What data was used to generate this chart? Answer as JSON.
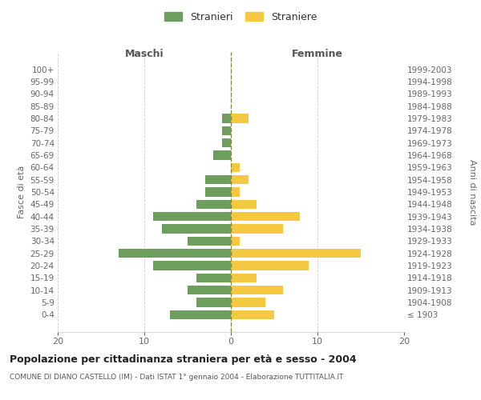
{
  "age_groups": [
    "100+",
    "95-99",
    "90-94",
    "85-89",
    "80-84",
    "75-79",
    "70-74",
    "65-69",
    "60-64",
    "55-59",
    "50-54",
    "45-49",
    "40-44",
    "35-39",
    "30-34",
    "25-29",
    "20-24",
    "15-19",
    "10-14",
    "5-9",
    "0-4"
  ],
  "birth_years": [
    "≤ 1903",
    "1904-1908",
    "1909-1913",
    "1914-1918",
    "1919-1923",
    "1924-1928",
    "1929-1933",
    "1934-1938",
    "1939-1943",
    "1944-1948",
    "1949-1953",
    "1954-1958",
    "1959-1963",
    "1964-1968",
    "1969-1973",
    "1974-1978",
    "1979-1983",
    "1984-1988",
    "1989-1993",
    "1994-1998",
    "1999-2003"
  ],
  "males": [
    0,
    0,
    0,
    0,
    1,
    1,
    1,
    2,
    0,
    3,
    3,
    4,
    9,
    8,
    5,
    13,
    9,
    4,
    5,
    4,
    7
  ],
  "females": [
    0,
    0,
    0,
    0,
    2,
    0,
    0,
    0,
    1,
    2,
    1,
    3,
    8,
    6,
    1,
    15,
    9,
    3,
    6,
    4,
    5
  ],
  "male_color": "#6d9e5e",
  "female_color": "#f5c842",
  "bg_color": "#ffffff",
  "grid_color": "#cccccc",
  "title": "Popolazione per cittadinanza straniera per età e sesso - 2004",
  "subtitle": "COMUNE DI DIANO CASTELLO (IM) - Dati ISTAT 1° gennaio 2004 - Elaborazione TUTTITALIA.IT",
  "legend_male": "Stranieri",
  "legend_female": "Straniere",
  "xlabel_left": "Maschi",
  "xlabel_right": "Femmine",
  "ylabel_left": "Fasce di età",
  "ylabel_right": "Anni di nascita",
  "xlim": 20,
  "center_line_color": "#8a8a3a"
}
